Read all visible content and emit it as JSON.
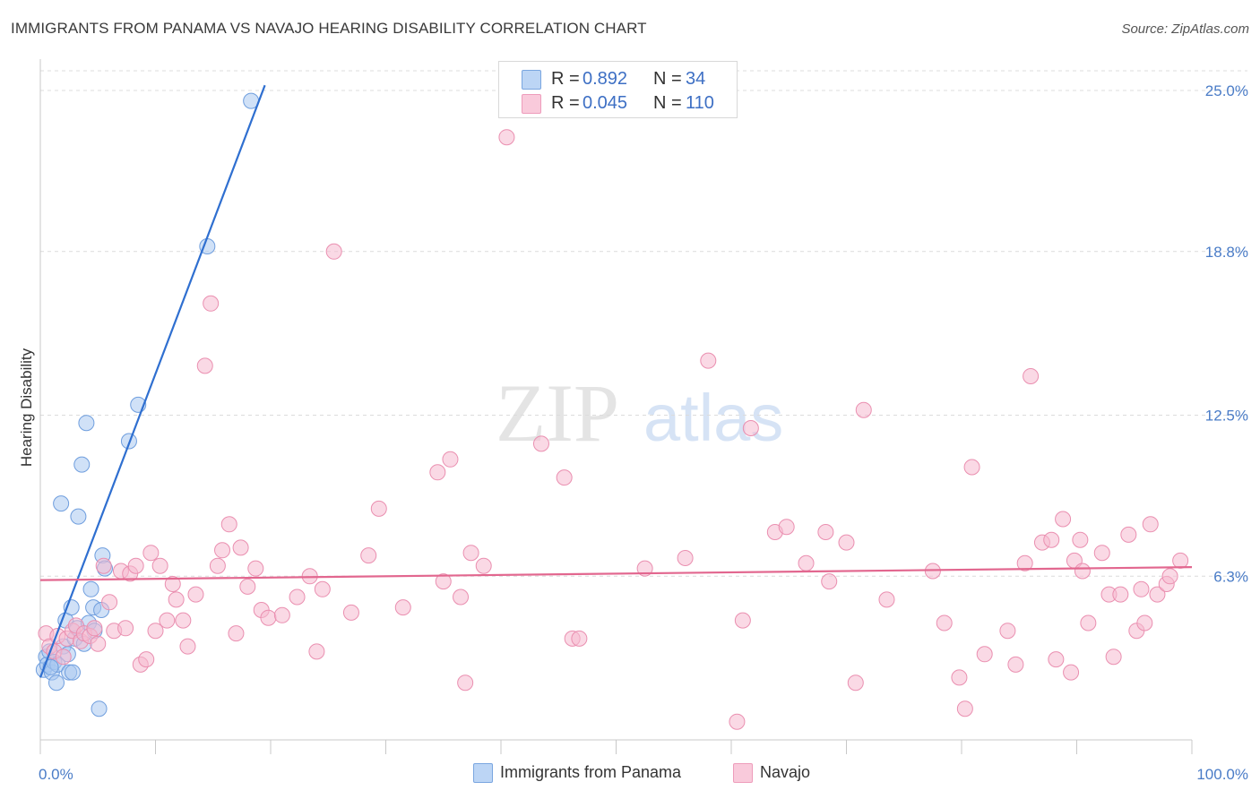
{
  "title": "IMMIGRANTS FROM PANAMA VS NAVAJO HEARING DISABILITY CORRELATION CHART",
  "source": "Source: ZipAtlas.com",
  "watermark": {
    "zip": "ZIP",
    "atlas": "atlas"
  },
  "legend": {
    "rows": [
      {
        "r_label": "R =",
        "r_value": "0.892",
        "n_label": "N =",
        "n_value": "34",
        "color": "#a9c8f0"
      },
      {
        "r_label": "R =",
        "r_value": "0.045",
        "n_label": "N =",
        "n_value": "110",
        "color": "#f6b9cf"
      }
    ]
  },
  "bottom_legend": [
    {
      "label": "Immigrants from Panama",
      "color": "#a9c8f0"
    },
    {
      "label": "Navajo",
      "color": "#f6b9cf"
    }
  ],
  "chart_data": {
    "type": "scatter",
    "title": "IMMIGRANTS FROM PANAMA VS NAVAJO HEARING DISABILITY CORRELATION CHART",
    "xlabel": "",
    "ylabel": "Hearing Disability",
    "xlim": [
      0,
      100
    ],
    "ylim": [
      0,
      26.0
    ],
    "x_tick_labels": [
      "0.0%",
      "100.0%"
    ],
    "y_ticks": [
      6.3,
      12.5,
      18.8,
      25.0
    ],
    "y_tick_labels": [
      "6.3%",
      "12.5%",
      "18.8%",
      "25.0%"
    ],
    "grid": true,
    "series": [
      {
        "name": "Immigrants from Panama",
        "color": "#a9c8f0",
        "stroke": "#6f9ede",
        "line_color": "#2f6fd0",
        "trend": {
          "x": [
            0,
            19.5
          ],
          "y": [
            2.4,
            25.2
          ]
        },
        "points": [
          [
            0.3,
            2.7
          ],
          [
            0.5,
            3.2
          ],
          [
            0.6,
            2.9
          ],
          [
            0.8,
            3.4
          ],
          [
            1.0,
            2.6
          ],
          [
            1.2,
            3.0
          ],
          [
            1.4,
            2.2
          ],
          [
            1.5,
            2.9
          ],
          [
            1.8,
            9.1
          ],
          [
            2.0,
            3.6
          ],
          [
            2.2,
            4.6
          ],
          [
            2.4,
            3.3
          ],
          [
            2.5,
            2.6
          ],
          [
            2.7,
            5.1
          ],
          [
            2.8,
            2.6
          ],
          [
            3.0,
            3.9
          ],
          [
            3.2,
            4.3
          ],
          [
            3.3,
            8.6
          ],
          [
            3.6,
            10.6
          ],
          [
            3.8,
            3.7
          ],
          [
            4.0,
            12.2
          ],
          [
            4.2,
            4.5
          ],
          [
            4.4,
            5.8
          ],
          [
            4.6,
            5.1
          ],
          [
            4.7,
            4.2
          ],
          [
            5.1,
            1.2
          ],
          [
            5.3,
            5.0
          ],
          [
            5.4,
            7.1
          ],
          [
            5.6,
            6.6
          ],
          [
            7.7,
            11.5
          ],
          [
            8.5,
            12.9
          ],
          [
            14.5,
            19.0
          ],
          [
            18.3,
            24.6
          ],
          [
            0.9,
            2.8
          ]
        ]
      },
      {
        "name": "Navajo",
        "color": "#f6b9cf",
        "stroke": "#ea8fb0",
        "line_color": "#e2678f",
        "trend": {
          "x": [
            0,
            100
          ],
          "y": [
            6.15,
            6.65
          ]
        },
        "points": [
          [
            0.5,
            4.1
          ],
          [
            0.8,
            3.6
          ],
          [
            1.2,
            3.4
          ],
          [
            1.5,
            4.0
          ],
          [
            2.0,
            3.2
          ],
          [
            2.3,
            3.9
          ],
          [
            2.8,
            4.2
          ],
          [
            3.1,
            4.4
          ],
          [
            3.5,
            3.8
          ],
          [
            3.8,
            4.1
          ],
          [
            4.3,
            4.0
          ],
          [
            4.7,
            4.3
          ],
          [
            5.0,
            3.7
          ],
          [
            5.5,
            6.7
          ],
          [
            6.0,
            5.3
          ],
          [
            6.4,
            4.2
          ],
          [
            7.0,
            6.5
          ],
          [
            7.4,
            4.3
          ],
          [
            7.8,
            6.4
          ],
          [
            8.3,
            6.7
          ],
          [
            8.7,
            2.9
          ],
          [
            9.2,
            3.1
          ],
          [
            9.6,
            7.2
          ],
          [
            10.0,
            4.2
          ],
          [
            10.4,
            6.7
          ],
          [
            11.0,
            4.6
          ],
          [
            11.5,
            6.0
          ],
          [
            11.8,
            5.4
          ],
          [
            12.4,
            4.6
          ],
          [
            12.8,
            3.6
          ],
          [
            13.5,
            5.6
          ],
          [
            14.3,
            14.4
          ],
          [
            14.8,
            16.8
          ],
          [
            15.4,
            6.7
          ],
          [
            15.8,
            7.3
          ],
          [
            16.4,
            8.3
          ],
          [
            17.0,
            4.1
          ],
          [
            17.4,
            7.4
          ],
          [
            18.0,
            5.9
          ],
          [
            18.7,
            6.6
          ],
          [
            19.2,
            5.0
          ],
          [
            19.8,
            4.7
          ],
          [
            21.0,
            4.8
          ],
          [
            22.3,
            5.5
          ],
          [
            23.4,
            6.3
          ],
          [
            24.0,
            3.4
          ],
          [
            24.5,
            5.8
          ],
          [
            25.5,
            18.8
          ],
          [
            27.0,
            4.9
          ],
          [
            28.5,
            7.1
          ],
          [
            29.4,
            8.9
          ],
          [
            31.5,
            5.1
          ],
          [
            34.5,
            10.3
          ],
          [
            35.0,
            6.1
          ],
          [
            35.6,
            10.8
          ],
          [
            36.5,
            5.5
          ],
          [
            36.9,
            2.2
          ],
          [
            37.4,
            7.2
          ],
          [
            38.5,
            6.7
          ],
          [
            40.5,
            23.2
          ],
          [
            43.5,
            11.4
          ],
          [
            45.5,
            10.1
          ],
          [
            46.2,
            3.9
          ],
          [
            46.8,
            3.9
          ],
          [
            52.5,
            6.6
          ],
          [
            56.0,
            7.0
          ],
          [
            58.0,
            14.6
          ],
          [
            60.5,
            0.7
          ],
          [
            61.0,
            4.6
          ],
          [
            61.7,
            12.0
          ],
          [
            63.8,
            8.0
          ],
          [
            64.8,
            8.2
          ],
          [
            66.5,
            6.8
          ],
          [
            68.5,
            6.1
          ],
          [
            68.2,
            8.0
          ],
          [
            70.8,
            2.2
          ],
          [
            70.0,
            7.6
          ],
          [
            71.5,
            12.7
          ],
          [
            73.5,
            5.4
          ],
          [
            77.5,
            6.5
          ],
          [
            78.5,
            4.5
          ],
          [
            79.8,
            2.4
          ],
          [
            80.3,
            1.2
          ],
          [
            80.9,
            10.5
          ],
          [
            82.0,
            3.3
          ],
          [
            84.0,
            4.2
          ],
          [
            84.7,
            2.9
          ],
          [
            85.5,
            6.8
          ],
          [
            86.0,
            14.0
          ],
          [
            87.0,
            7.6
          ],
          [
            87.8,
            7.7
          ],
          [
            88.2,
            3.1
          ],
          [
            88.8,
            8.5
          ],
          [
            89.5,
            2.6
          ],
          [
            89.8,
            6.9
          ],
          [
            90.5,
            6.5
          ],
          [
            90.3,
            7.7
          ],
          [
            91.0,
            4.5
          ],
          [
            92.2,
            7.2
          ],
          [
            92.8,
            5.6
          ],
          [
            93.2,
            3.2
          ],
          [
            93.8,
            5.6
          ],
          [
            94.5,
            7.9
          ],
          [
            95.2,
            4.2
          ],
          [
            95.6,
            5.8
          ],
          [
            95.9,
            4.5
          ],
          [
            96.4,
            8.3
          ],
          [
            97.0,
            5.6
          ],
          [
            97.8,
            6.0
          ],
          [
            98.1,
            6.3
          ],
          [
            99.0,
            6.9
          ]
        ]
      }
    ]
  }
}
